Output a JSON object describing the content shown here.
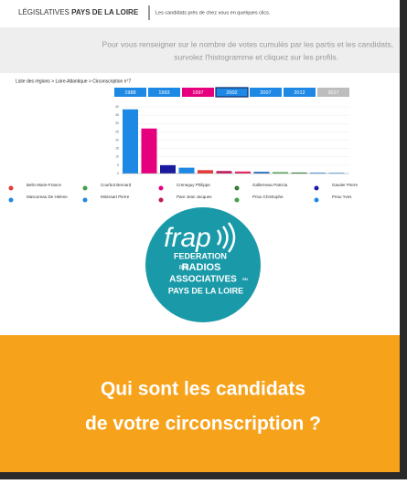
{
  "header": {
    "brand_light": "LÉGISLATIVES",
    "brand_bold": "PAYS DE LA LOIRE",
    "tagline": "Les candidats près de chez vous en quelques clics."
  },
  "intro": [
    "Pour vous renseigner sur le nombre de votes cumulés par les partis et les candidats,",
    "survolez l'histogramme et cliquez sur les profils."
  ],
  "breadcrumb": "Liste des régions > Loire-Atlantique > Circonscription n°7",
  "years": [
    {
      "label": "1988",
      "color": "#1e88e5"
    },
    {
      "label": "1993",
      "color": "#1e88e5"
    },
    {
      "label": "1997",
      "color": "#e6007e"
    },
    {
      "label": "2002",
      "color": "#1e88e5",
      "selected": true
    },
    {
      "label": "2007",
      "color": "#1e88e5"
    },
    {
      "label": "2012",
      "color": "#1e88e5"
    },
    {
      "label": "2017",
      "color": "#bdbdbd"
    }
  ],
  "chart": {
    "ylim": [
      0,
      40
    ],
    "yticks": [
      0,
      5,
      10,
      15,
      20,
      25,
      30,
      35,
      40
    ],
    "bars": [
      {
        "value": 38.5,
        "color": "#1e88e5"
      },
      {
        "value": 27,
        "color": "#e6007e"
      },
      {
        "value": 5,
        "color": "#1a1a9e"
      },
      {
        "value": 3.5,
        "color": "#1e88e5"
      },
      {
        "value": 2,
        "color": "#e53935"
      },
      {
        "value": 1.5,
        "color": "#c2185b"
      },
      {
        "value": 1.2,
        "color": "#e91e63"
      },
      {
        "value": 1,
        "color": "#1565c0"
      },
      {
        "value": 0.8,
        "color": "#43a047"
      },
      {
        "value": 0.6,
        "color": "#2e7d32"
      },
      {
        "value": 0.5,
        "color": "#1e88e5"
      },
      {
        "value": 0.4,
        "color": "#1e88e5"
      }
    ]
  },
  "legend": [
    {
      "name": "Belin Marie-France",
      "color": "#e53935"
    },
    {
      "name": "Courbot Bernard",
      "color": "#43a047"
    },
    {
      "name": "Creneguy Philippe",
      "color": "#e6007e"
    },
    {
      "name": "Gallerneau Patricia",
      "color": "#2e7d32"
    },
    {
      "name": "Gautier Pierre",
      "color": "#1a1a9e"
    },
    {
      "name": "Mascureau De Helene",
      "color": "#1e88e5"
    },
    {
      "name": "Minissart Pierre",
      "color": "#1e88e5"
    },
    {
      "name": "Pare Jean Jacques",
      "color": "#c2185b"
    },
    {
      "name": "Priou Christophe",
      "color": "#43a047"
    },
    {
      "name": "Priou Yves",
      "color": "#1e88e5"
    }
  ],
  "logo": {
    "word": "frap",
    "lines": [
      "FEDERATION",
      "DES",
      "RADIOS",
      "ASSOCIATIVES",
      "EN",
      "PAYS DE LA LOIRE"
    ]
  },
  "banner": [
    "Qui sont les candidats",
    "de votre circonscription ?"
  ]
}
